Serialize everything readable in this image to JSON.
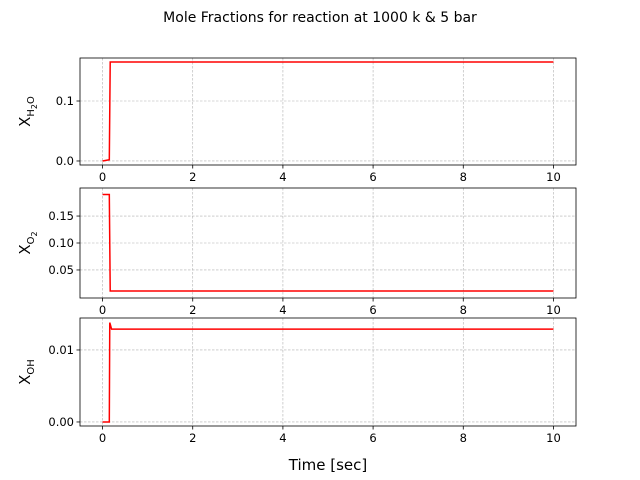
{
  "figure_title": "Mole Fractions for reaction at 1000 k & 5 bar",
  "chart_data": [
    {
      "type": "line",
      "ylabel": [
        "X",
        [
          "H",
          [
            "2"
          ],
          "O"
        ]
      ],
      "x": [
        0,
        0.15,
        0.17,
        10
      ],
      "values": [
        0,
        0.002,
        0.165,
        0.165
      ],
      "color": "#ff0000",
      "xlim": [
        -0.5,
        10.5
      ],
      "xticks": [
        0,
        2,
        4,
        6,
        8,
        10
      ],
      "ylim": [
        -0.0067,
        0.1717
      ],
      "yticks": [
        {
          "value": 0,
          "label": "0.0"
        },
        0.1
      ],
      "grid": true
    },
    {
      "type": "line",
      "ylabel": [
        "X",
        [
          "O",
          [
            "2"
          ]
        ]
      ],
      "x": [
        0,
        0.15,
        0.17,
        10
      ],
      "values": [
        0.19,
        0.19,
        0.011,
        0.011
      ],
      "color": "#ff0000",
      "xlim": [
        -0.5,
        10.5
      ],
      "xticks": [
        0,
        2,
        4,
        6,
        8,
        10
      ],
      "ylim": [
        -0.002,
        0.202
      ],
      "yticks": [
        0.05,
        {
          "value": 0.1,
          "label": "0.10"
        },
        0.15
      ],
      "grid": true
    },
    {
      "type": "line",
      "ylabel": [
        "X",
        [
          "OH"
        ]
      ],
      "xlabel": "Time [sec]",
      "x": [
        0,
        0.15,
        0.16,
        0.17,
        0.2,
        10
      ],
      "values": [
        0,
        0,
        0.0138,
        0.0136,
        0.0129,
        0.0129
      ],
      "color": "#ff0000",
      "xlim": [
        -0.5,
        10.5
      ],
      "xticks": [
        0,
        2,
        4,
        6,
        8,
        10
      ],
      "ylim": [
        -0.00056,
        0.01444
      ],
      "yticks": [
        {
          "value": 0,
          "label": "0.00"
        },
        0.01
      ],
      "grid": true
    }
  ]
}
